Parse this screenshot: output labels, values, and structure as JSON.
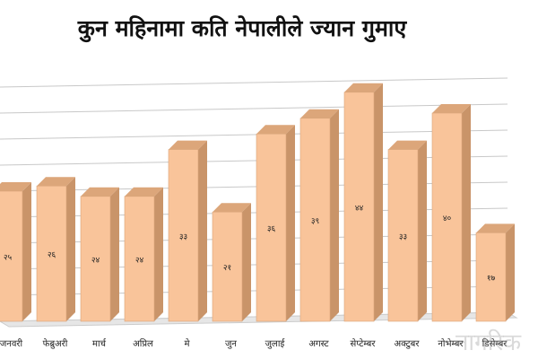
{
  "title": "कुन महिनामा कति नेपालीले ज्यान गुमाए",
  "watermark": "नागरिक",
  "colors": {
    "bar_front": "#f9c49a",
    "bar_side": "#c99469",
    "bar_top": "#dca67a",
    "grid": "#c8c8c8",
    "text": "#222222"
  },
  "chart_data": {
    "type": "bar",
    "title": "कुन महिनामा कति नेपालीले ज्यान गुमाए",
    "categories": [
      "जनवरी",
      "फेब्रुअरी",
      "मार्च",
      "अप्रिल",
      "मे",
      "जुन",
      "जुलाई",
      "अगस्ट",
      "सेप्टेम्बर",
      "अक्टुबर",
      "नोभेम्बर",
      "डिसेम्बर"
    ],
    "values": [
      25,
      26,
      24,
      24,
      33,
      21,
      36,
      39,
      44,
      33,
      40,
      17
    ],
    "value_labels": [
      "२५",
      "२६",
      "२४",
      "२४",
      "३३",
      "२१",
      "३६",
      "३९",
      "४४",
      "३३",
      "४०",
      "१७"
    ],
    "xlabel": "",
    "ylabel": "",
    "ylim": [
      0,
      45
    ],
    "grid": true,
    "legend": "none"
  }
}
